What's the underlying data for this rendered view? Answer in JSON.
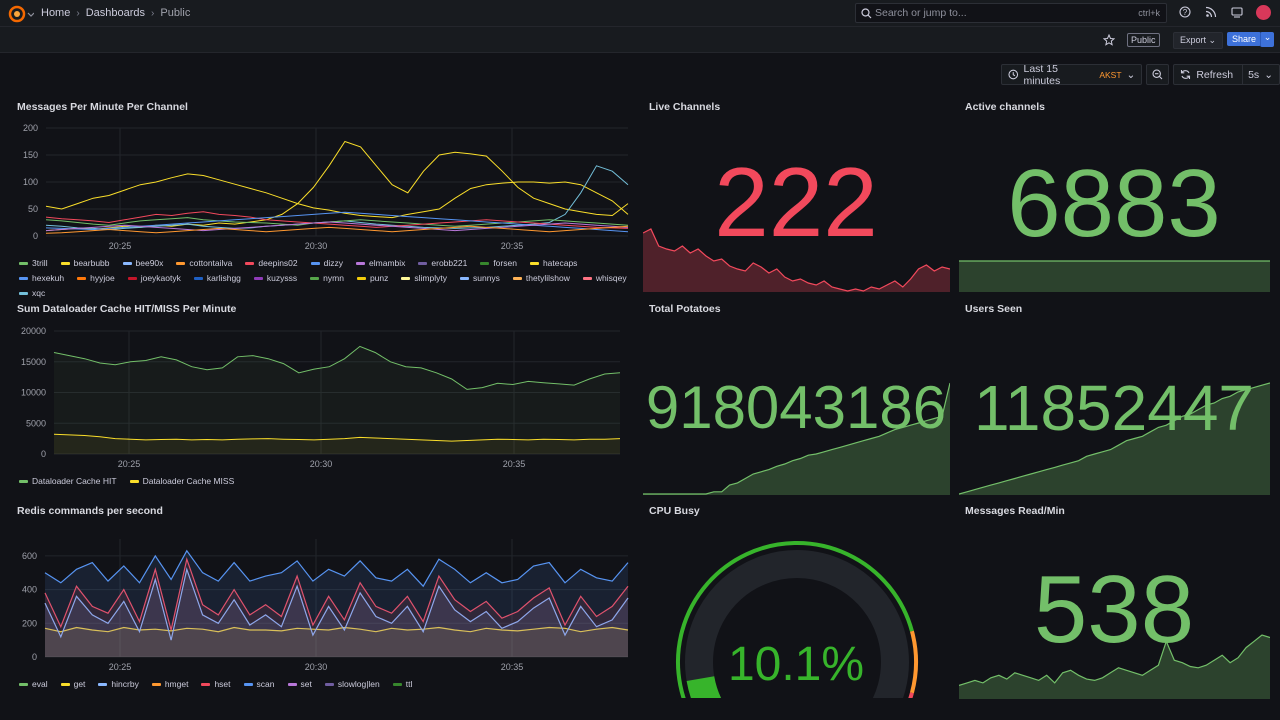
{
  "header": {
    "breadcrumbs": [
      "Home",
      "Dashboards",
      "Public"
    ],
    "search_placeholder": "Search or jump to...",
    "search_shortcut": "ctrl+k",
    "public_badge": "Public",
    "export_label": "Export",
    "share_label": "Share"
  },
  "timepicker": {
    "range": "Last 15 minutes",
    "timezone": "AKST",
    "refresh_label": "Refresh",
    "refresh_interval": "5s"
  },
  "panels": {
    "messages": {
      "title": "Messages Per Minute Per Channel",
      "legend": [
        {
          "name": "3trill",
          "color": "#73bf69"
        },
        {
          "name": "bearbubb",
          "color": "#fade2a"
        },
        {
          "name": "bee90x",
          "color": "#8ab8ff"
        },
        {
          "name": "cottontailva",
          "color": "#ff9830"
        },
        {
          "name": "deepins02",
          "color": "#f2495c"
        },
        {
          "name": "dizzy",
          "color": "#5794f2"
        },
        {
          "name": "elmambix",
          "color": "#b877d9"
        },
        {
          "name": "erobb221",
          "color": "#705da0"
        },
        {
          "name": "forsen",
          "color": "#37872d"
        },
        {
          "name": "hatecaps",
          "color": "#fade2a"
        },
        {
          "name": "hexekuh",
          "color": "#5794f2"
        },
        {
          "name": "hyyjoe",
          "color": "#ff780a"
        },
        {
          "name": "joeykaotyk",
          "color": "#c4162a"
        },
        {
          "name": "karlishgg",
          "color": "#1f60c4"
        },
        {
          "name": "kuzysss",
          "color": "#8f3bb8"
        },
        {
          "name": "nymn",
          "color": "#56a64b"
        },
        {
          "name": "punz",
          "color": "#f2cc0c"
        },
        {
          "name": "slimplyty",
          "color": "#fff899"
        },
        {
          "name": "sunnys",
          "color": "#8ab8ff"
        },
        {
          "name": "thetylilshow",
          "color": "#ffb357"
        },
        {
          "name": "whisqey",
          "color": "#ff7383"
        },
        {
          "name": "xqc",
          "color": "#73bfd9"
        }
      ]
    },
    "cache": {
      "title": "Sum Dataloader Cache HIT/MISS Per Minute",
      "legend": [
        {
          "name": "Dataloader Cache HIT",
          "color": "#73bf69"
        },
        {
          "name": "Dataloader Cache MISS",
          "color": "#fade2a"
        }
      ]
    },
    "redis": {
      "title": "Redis commands per second",
      "legend": [
        {
          "name": "eval",
          "color": "#73bf69"
        },
        {
          "name": "get",
          "color": "#fade2a"
        },
        {
          "name": "hincrby",
          "color": "#8ab8ff"
        },
        {
          "name": "hmget",
          "color": "#ff9830"
        },
        {
          "name": "hset",
          "color": "#f2495c"
        },
        {
          "name": "scan",
          "color": "#5794f2"
        },
        {
          "name": "set",
          "color": "#b877d9"
        },
        {
          "name": "slowlog|len",
          "color": "#705da0"
        },
        {
          "name": "ttl",
          "color": "#37872d"
        }
      ]
    },
    "live_channels": {
      "title": "Live Channels",
      "value": "222",
      "color": "#f2495c"
    },
    "active_channels": {
      "title": "Active channels",
      "value": "6883",
      "color": "#73bf69"
    },
    "total_potatoes": {
      "title": "Total Potatoes",
      "value": "918043186",
      "color": "#73bf69"
    },
    "users_seen": {
      "title": "Users Seen",
      "value": "11852447",
      "color": "#73bf69"
    },
    "cpu_busy": {
      "title": "CPU Busy",
      "value": "10.1%",
      "percent": 10.1,
      "color": "#37b42b"
    },
    "messages_read": {
      "title": "Messages Read/Min",
      "value": "538",
      "color": "#73bf69"
    }
  },
  "chart_data": [
    {
      "type": "line",
      "title": "Messages Per Minute Per Channel",
      "x_ticks": [
        "20:25",
        "20:30",
        "20:35"
      ],
      "ylim": [
        0,
        200
      ],
      "y_ticks": [
        "0",
        "50",
        "100",
        "150",
        "200"
      ],
      "series": [
        {
          "name": "bearbubb",
          "values": [
            55,
            50,
            60,
            70,
            75,
            85,
            95,
            100,
            108,
            115,
            112,
            104,
            96,
            88,
            80,
            70,
            60,
            52,
            48,
            42,
            38,
            36,
            34,
            40,
            45,
            50,
            70,
            88,
            95,
            98,
            100,
            100,
            98,
            100,
            95,
            80,
            65,
            40
          ]
        },
        {
          "name": "hatecaps",
          "values": [
            10,
            12,
            14,
            12,
            15,
            18,
            16,
            20,
            18,
            22,
            20,
            24,
            22,
            26,
            30,
            40,
            60,
            90,
            130,
            175,
            165,
            130,
            95,
            80,
            120,
            150,
            155,
            152,
            148,
            120,
            90,
            70,
            60,
            50,
            45,
            40,
            38,
            60
          ]
        },
        {
          "name": "xqc",
          "values": [
            20,
            18,
            15,
            14,
            12,
            14,
            16,
            18,
            20,
            22,
            18,
            16,
            14,
            15,
            18,
            20,
            22,
            24,
            26,
            28,
            25,
            22,
            20,
            18,
            16,
            15,
            14,
            15,
            16,
            18,
            20,
            22,
            25,
            40,
            80,
            130,
            120,
            95
          ]
        },
        {
          "name": "3trill",
          "values": [
            30,
            28,
            25,
            22,
            20,
            24,
            28,
            30,
            32,
            34,
            30,
            28,
            26,
            25,
            24,
            22,
            20,
            24,
            26,
            28,
            30,
            28,
            26,
            24,
            22,
            20,
            18,
            20,
            22,
            24,
            26,
            28,
            30,
            28,
            26,
            24,
            22,
            20
          ]
        },
        {
          "name": "deepins02",
          "values": [
            35,
            32,
            30,
            28,
            25,
            30,
            35,
            40,
            38,
            42,
            45,
            40,
            38,
            35,
            30,
            28,
            26,
            24,
            22,
            20,
            18,
            16,
            18,
            20,
            22,
            24,
            26,
            28,
            30,
            28,
            26,
            24,
            22,
            20,
            18,
            16,
            15,
            14
          ]
        },
        {
          "name": "hexekuh",
          "values": [
            15,
            14,
            13,
            12,
            14,
            16,
            18,
            20,
            22,
            24,
            26,
            28,
            30,
            32,
            34,
            36,
            38,
            40,
            42,
            44,
            42,
            40,
            38,
            36,
            34,
            32,
            30,
            28,
            26,
            24,
            22,
            20,
            18,
            16,
            14,
            12,
            10,
            8
          ]
        },
        {
          "name": "elmambix",
          "values": [
            10,
            12,
            14,
            16,
            18,
            20,
            18,
            16,
            14,
            12,
            10,
            12,
            14,
            16,
            18,
            20,
            22,
            24,
            26,
            24,
            22,
            20,
            18,
            16,
            14,
            12,
            10,
            12,
            14,
            16,
            18,
            20,
            22,
            24,
            22,
            20,
            18,
            16
          ]
        },
        {
          "name": "cottontailva",
          "values": [
            5,
            6,
            8,
            10,
            12,
            10,
            8,
            6,
            8,
            10,
            12,
            14,
            12,
            10,
            8,
            10,
            12,
            14,
            16,
            14,
            12,
            10,
            8,
            10,
            12,
            14,
            16,
            18,
            16,
            14,
            12,
            10,
            8,
            10,
            12,
            14,
            16,
            18
          ]
        }
      ]
    },
    {
      "type": "area",
      "title": "Sum Dataloader Cache HIT/MISS Per Minute",
      "x_ticks": [
        "20:25",
        "20:30",
        "20:35"
      ],
      "ylim": [
        0,
        20000
      ],
      "y_ticks": [
        "0",
        "5000",
        "10000",
        "15000",
        "20000"
      ],
      "series": [
        {
          "name": "Dataloader Cache HIT",
          "values": [
            16500,
            16000,
            15500,
            14800,
            14500,
            15000,
            15200,
            15800,
            15300,
            14200,
            13700,
            14000,
            15800,
            16000,
            15500,
            14700,
            13200,
            13800,
            14200,
            15500,
            17500,
            16500,
            15000,
            14200,
            14000,
            13200,
            12200,
            10500,
            10800,
            11500,
            11300,
            11800,
            11600,
            11400,
            11200,
            12200,
            13000,
            13200
          ]
        },
        {
          "name": "Dataloader Cache MISS",
          "values": [
            3200,
            3100,
            3000,
            2800,
            2500,
            2400,
            2300,
            2350,
            2400,
            2300,
            2350,
            2300,
            2400,
            2450,
            2500,
            2400,
            2350,
            2300,
            2400,
            2500,
            2700,
            2600,
            2500,
            2400,
            2300,
            2200,
            2100,
            2200,
            2300,
            2400,
            2350,
            2300,
            2400,
            2350,
            2300,
            2400,
            2400,
            2500
          ]
        }
      ]
    },
    {
      "type": "area",
      "title": "Redis commands per second",
      "x_ticks": [
        "20:25",
        "20:30",
        "20:35"
      ],
      "ylim": [
        0,
        700
      ],
      "y_ticks": [
        "0",
        "200",
        "400",
        "600"
      ],
      "series": [
        {
          "name": "get",
          "values": [
            170,
            150,
            175,
            160,
            150,
            175,
            160,
            165,
            155,
            170,
            165,
            150,
            175,
            160,
            160,
            155,
            170,
            165,
            160,
            175,
            165,
            150,
            170,
            160,
            165,
            175,
            160,
            150,
            170,
            160,
            155,
            165,
            175,
            170,
            150,
            165,
            175,
            160
          ]
        },
        {
          "name": "hincrby",
          "values": [
            320,
            120,
            360,
            250,
            200,
            330,
            150,
            460,
            100,
            520,
            250,
            200,
            340,
            190,
            250,
            180,
            420,
            130,
            300,
            160,
            380,
            240,
            200,
            300,
            150,
            420,
            280,
            210,
            270,
            170,
            210,
            290,
            350,
            130,
            300,
            180,
            220,
            350
          ]
        },
        {
          "name": "hset",
          "values": [
            380,
            180,
            420,
            300,
            260,
            400,
            210,
            520,
            160,
            580,
            310,
            250,
            400,
            250,
            310,
            240,
            480,
            190,
            360,
            220,
            440,
            300,
            260,
            360,
            210,
            480,
            340,
            270,
            330,
            230,
            270,
            350,
            410,
            190,
            360,
            240,
            300,
            420
          ]
        },
        {
          "name": "scan",
          "values": [
            500,
            440,
            520,
            560,
            450,
            540,
            440,
            600,
            460,
            630,
            500,
            450,
            560,
            450,
            480,
            500,
            570,
            450,
            520,
            480,
            570,
            470,
            450,
            520,
            420,
            580,
            520,
            440,
            500,
            440,
            460,
            540,
            560,
            440,
            520,
            470,
            450,
            560
          ]
        }
      ]
    },
    {
      "type": "area",
      "title": "Live Channels",
      "values": [
        58,
        62,
        45,
        42,
        40,
        45,
        38,
        42,
        35,
        30,
        32,
        25,
        22,
        20,
        28,
        24,
        18,
        22,
        14,
        10,
        12,
        8,
        6,
        10,
        4,
        2,
        0,
        2,
        0,
        4,
        2,
        6,
        10,
        4,
        12,
        22,
        26,
        20,
        24,
        22
      ]
    },
    {
      "type": "area",
      "title": "Active channels",
      "values": [
        30,
        30,
        30,
        30,
        30,
        30,
        30,
        30,
        30,
        30,
        30,
        30,
        30,
        30,
        30,
        30,
        30,
        30,
        30,
        30,
        30,
        30,
        30,
        30,
        30,
        30,
        30,
        30,
        30,
        30,
        30,
        30,
        30,
        30,
        30,
        30,
        30,
        30,
        30,
        30
      ]
    },
    {
      "type": "area",
      "title": "Total Potatoes",
      "values": [
        0,
        0,
        0,
        0,
        0,
        0,
        0,
        0,
        0,
        2,
        2,
        8,
        10,
        14,
        18,
        20,
        22,
        25,
        27,
        30,
        32,
        35,
        36,
        38,
        40,
        42,
        44,
        46,
        48,
        50,
        52,
        55,
        58,
        60,
        62,
        64,
        66,
        68,
        70,
        100
      ]
    },
    {
      "type": "area",
      "title": "Users Seen",
      "values": [
        0,
        2,
        4,
        6,
        8,
        10,
        12,
        14,
        16,
        18,
        20,
        22,
        24,
        26,
        28,
        30,
        34,
        36,
        38,
        40,
        44,
        48,
        50,
        52,
        56,
        60,
        62,
        66,
        70,
        72,
        76,
        80,
        82,
        86,
        88,
        92,
        94,
        96,
        98,
        100
      ]
    },
    {
      "type": "area",
      "title": "Messages Read/Min",
      "values": [
        10,
        12,
        14,
        12,
        16,
        18,
        15,
        20,
        18,
        16,
        14,
        18,
        12,
        20,
        22,
        18,
        15,
        14,
        16,
        20,
        24,
        22,
        20,
        18,
        22,
        26,
        45,
        30,
        28,
        25,
        24,
        26,
        30,
        34,
        28,
        32,
        40,
        45,
        50,
        48
      ]
    }
  ]
}
